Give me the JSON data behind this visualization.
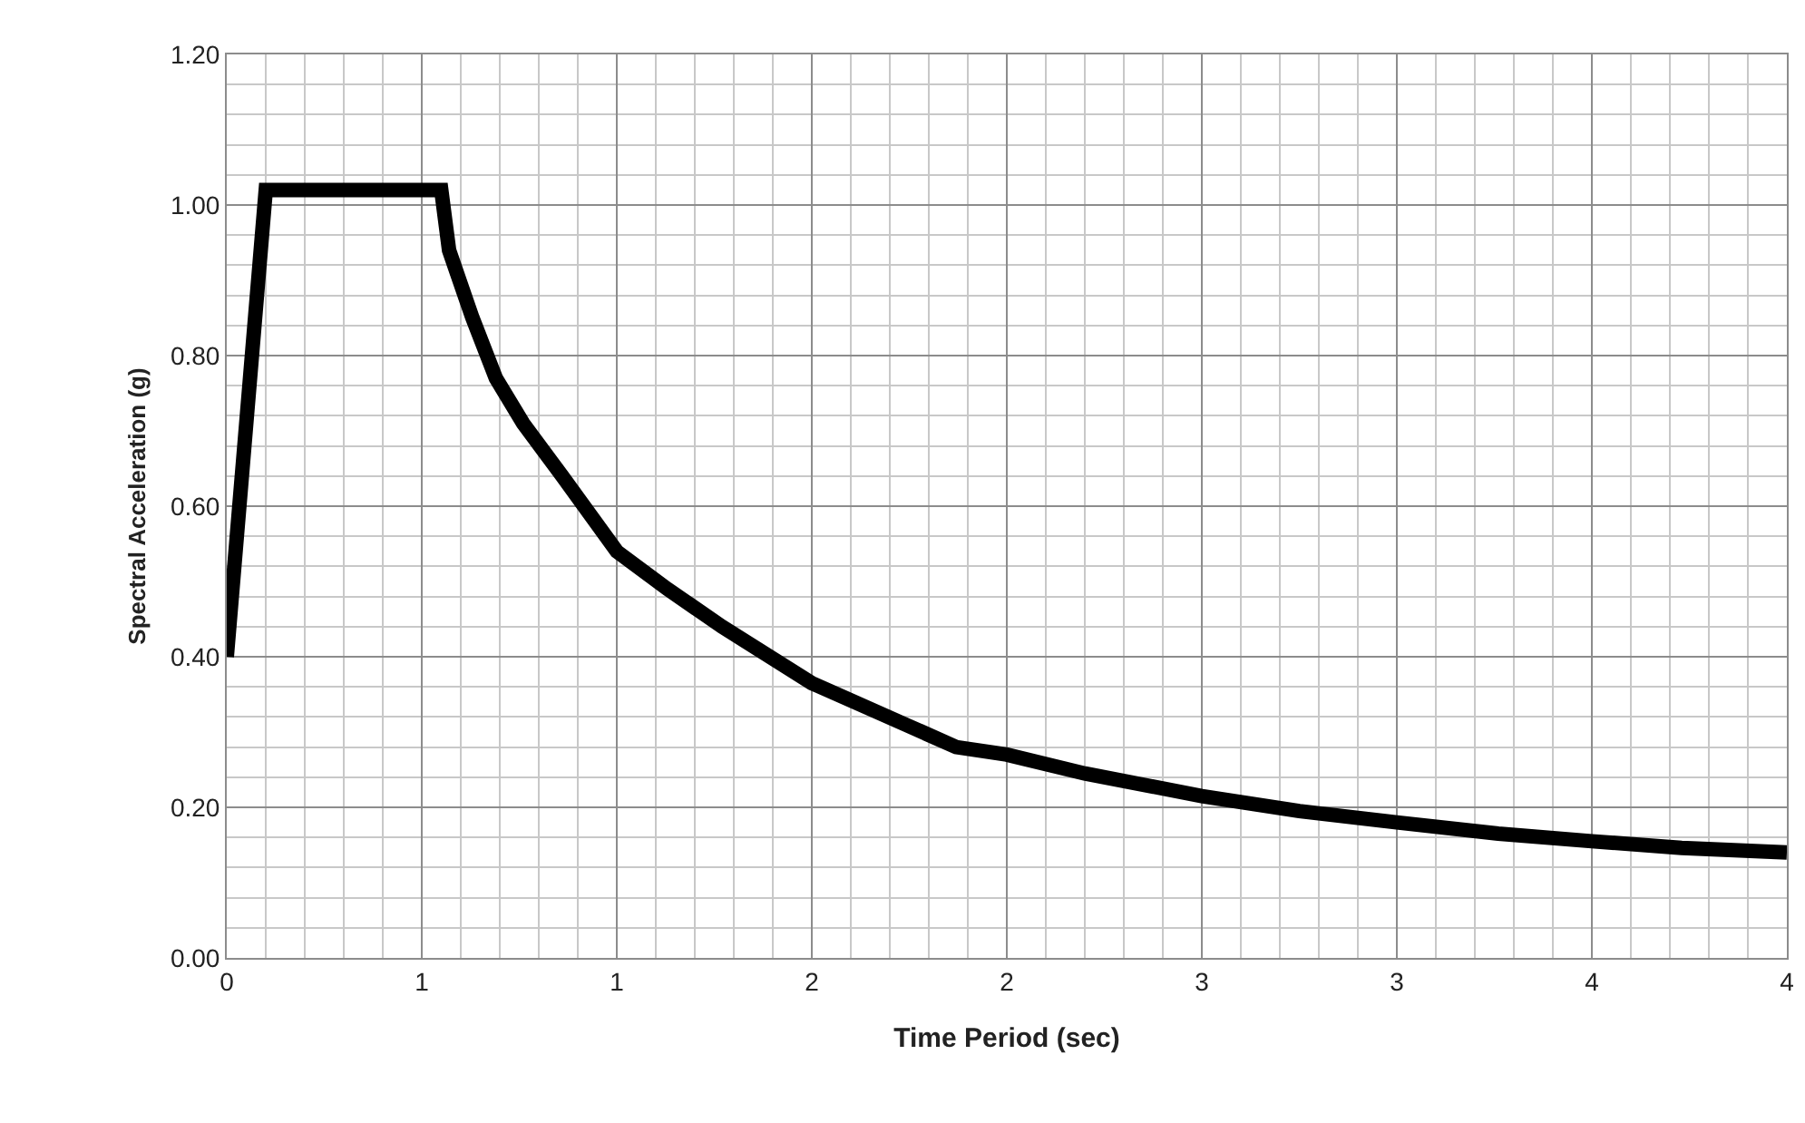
{
  "chart_data": {
    "type": "line",
    "xlabel": "Time Period (sec)",
    "ylabel": "Spectral Acceleration (g)",
    "x": [
      0,
      0.1,
      0.55,
      0.57,
      0.63,
      0.69,
      0.76,
      0.86,
      1.0,
      1.13,
      1.27,
      1.5,
      1.74,
      1.87,
      2.0,
      2.2,
      2.5,
      2.75,
      3.0,
      3.26,
      3.5,
      3.73,
      4.0
    ],
    "series": [
      {
        "color": "#000000",
        "values": [
          0.4,
          1.02,
          1.02,
          0.94,
          0.85,
          0.77,
          0.71,
          0.64,
          0.54,
          0.49,
          0.44,
          0.365,
          0.31,
          0.28,
          0.27,
          0.245,
          0.215,
          0.195,
          0.18,
          0.165,
          0.155,
          0.146,
          0.14
        ]
      }
    ],
    "xlim": [
      0,
      4
    ],
    "ylim": [
      0,
      1.2
    ],
    "xticks": [
      0,
      {
        "value": 0.5,
        "label": "1"
      },
      1,
      {
        "value": 1.5,
        "label": "2"
      },
      2,
      {
        "value": 2.5,
        "label": "3"
      },
      3,
      {
        "value": 3.5,
        "label": "4"
      },
      4
    ],
    "yticks": [
      {
        "value": 0,
        "label": "0.00"
      },
      {
        "value": 0.2,
        "label": "0.20"
      },
      {
        "value": 0.4,
        "label": "0.40"
      },
      {
        "value": 0.6,
        "label": "0.60"
      },
      {
        "value": 0.8,
        "label": "0.80"
      },
      {
        "value": 1.0,
        "label": "1.00"
      },
      {
        "value": 1.2,
        "label": "1.20"
      }
    ],
    "grid": true,
    "marker": "none",
    "line_style": "solid"
  }
}
